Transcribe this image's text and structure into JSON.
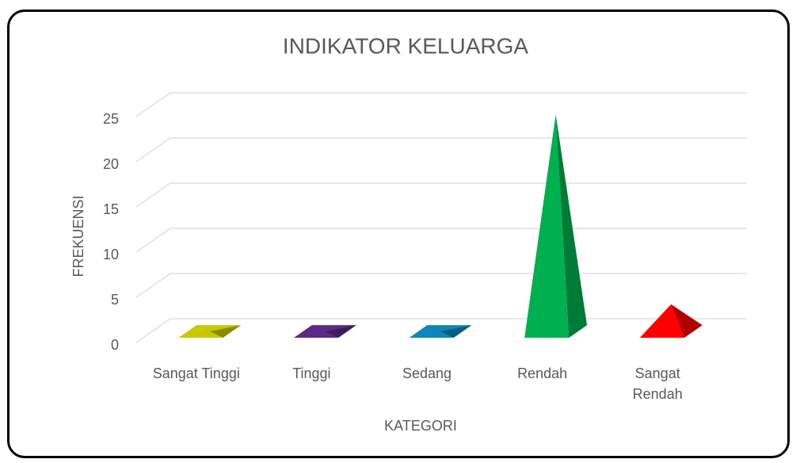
{
  "chart_data": {
    "type": "pyramid3d",
    "title": "INDIKATOR KELUARGA",
    "x_label": "KATEGORI",
    "y_label": "FREKUENSI",
    "categories": [
      "Sangat Tinggi",
      "Tinggi",
      "Sedang",
      "Rendah",
      "Sangat Rendah"
    ],
    "values": [
      0,
      0,
      0,
      24,
      3
    ],
    "colors": [
      "#c8c800",
      "#5b2a86",
      "#0e86b8",
      "#00b050",
      "#ff0000"
    ],
    "ylim": [
      0,
      25
    ],
    "yticks": [
      0,
      5,
      10,
      15,
      20,
      25
    ],
    "grid": true
  }
}
